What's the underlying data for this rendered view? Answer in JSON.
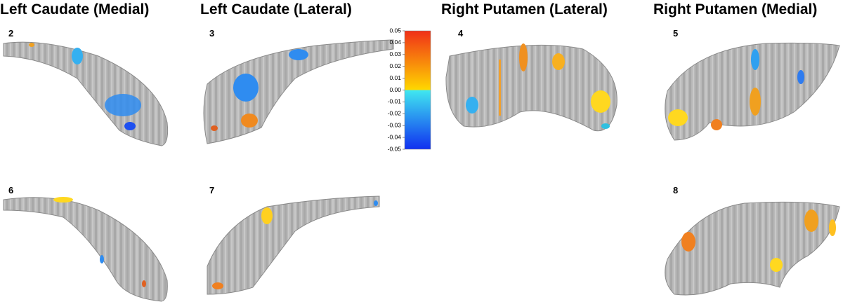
{
  "headers": [
    "Left Caudate (Medial)",
    "Left Caudate (Lateral)",
    "Right Putamen (Lateral)",
    "Right Putamen (Medial)"
  ],
  "panels": [
    "2",
    "3",
    "4",
    "5",
    "6",
    "7",
    "8"
  ],
  "colorbar": {
    "ylim": [
      -0.05,
      0.05
    ],
    "yticks": [
      0.05,
      0.04,
      0.03,
      0.02,
      0.01,
      {
        "value": 0,
        "label": "0.00"
      },
      -0.01,
      -0.02,
      -0.03,
      -0.04,
      -0.05
    ],
    "colors": [
      "#f03018",
      "#ffd800",
      "#40e8f0",
      "#1030f0"
    ]
  }
}
